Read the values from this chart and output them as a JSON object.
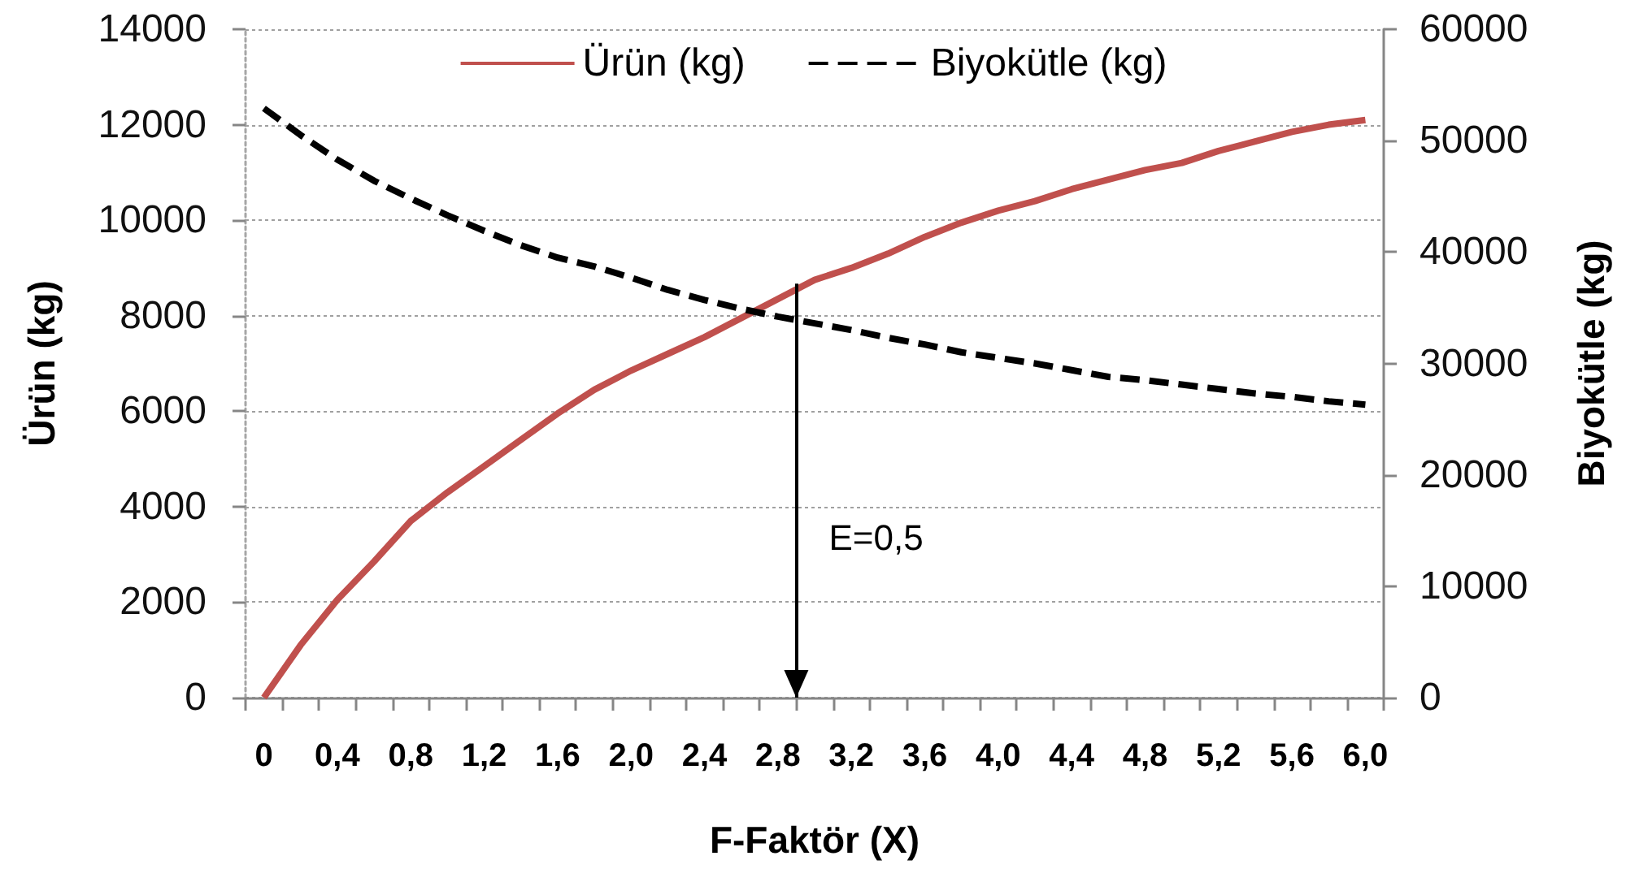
{
  "chart_data": {
    "type": "line",
    "xlabel": "F-Faktör (X)",
    "ylabel": "Ürün (kg)",
    "y2label": "Biyokütle (kg)",
    "x": [
      0,
      0.2,
      0.4,
      0.6,
      0.8,
      1.0,
      1.2,
      1.4,
      1.6,
      1.8,
      2.0,
      2.2,
      2.4,
      2.6,
      2.8,
      3.0,
      3.2,
      3.4,
      3.6,
      3.8,
      4.0,
      4.2,
      4.4,
      4.6,
      4.8,
      5.0,
      5.2,
      5.4,
      5.6,
      5.8,
      6.0
    ],
    "series": [
      {
        "name": "Ürün (kg)",
        "color": "#c0504d",
        "line_style": "solid",
        "values": [
          0,
          1100,
          2050,
          2850,
          3700,
          4300,
          4850,
          5400,
          5950,
          6450,
          6850,
          7200,
          7550,
          7950,
          8350,
          8750,
          9000,
          9300,
          9650,
          9950,
          10200,
          10400,
          10650,
          10850,
          11050,
          11200,
          11450,
          11650,
          11850,
          12000,
          12100
        ]
      },
      {
        "name": "Biyokütle (kg)",
        "color": "#000000",
        "line_style": "dashed",
        "axis": "y2",
        "values": [
          52900,
          50500,
          48300,
          46400,
          44800,
          43300,
          41900,
          40600,
          39500,
          38700,
          37700,
          36600,
          35700,
          34900,
          34200,
          33600,
          33000,
          32300,
          31700,
          31000,
          30500,
          30000,
          29400,
          28800,
          28500,
          28100,
          27700,
          27300,
          27000,
          26600,
          26300
        ]
      }
    ],
    "xlim": [
      -0.1,
      6.1
    ],
    "xticks": [
      {
        "value": -0.1,
        "label": null
      },
      0,
      {
        "value": 0.1,
        "label": null
      },
      {
        "value": 0.3,
        "label": null
      },
      {
        "value": 0.4,
        "label": "0,4"
      },
      {
        "value": 0.5,
        "label": null
      },
      {
        "value": 0.7,
        "label": null
      },
      {
        "value": 0.8,
        "label": "0,8"
      },
      {
        "value": 0.9,
        "label": null
      },
      {
        "value": 1.1,
        "label": null
      },
      {
        "value": 1.2,
        "label": "1,2"
      },
      {
        "value": 1.3,
        "label": null
      },
      {
        "value": 1.5,
        "label": null
      },
      {
        "value": 1.6,
        "label": "1,6"
      },
      {
        "value": 1.7,
        "label": null
      },
      {
        "value": 1.9,
        "label": null
      },
      {
        "value": 2.0,
        "label": "2,0"
      },
      {
        "value": 2.1,
        "label": null
      },
      {
        "value": 2.3,
        "label": null
      },
      {
        "value": 2.4,
        "label": "2,4"
      },
      {
        "value": 2.5,
        "label": null
      },
      {
        "value": 2.7,
        "label": null
      },
      {
        "value": 2.8,
        "label": "2,8"
      },
      {
        "value": 2.9,
        "label": null
      },
      {
        "value": 3.1,
        "label": null
      },
      {
        "value": 3.2,
        "label": "3,2"
      },
      {
        "value": 3.3,
        "label": null
      },
      {
        "value": 3.5,
        "label": null
      },
      {
        "value": 3.6,
        "label": "3,6"
      },
      {
        "value": 3.7,
        "label": null
      },
      {
        "value": 3.9,
        "label": null
      },
      {
        "value": 4.0,
        "label": "4,0"
      },
      {
        "value": 4.1,
        "label": null
      },
      {
        "value": 4.3,
        "label": null
      },
      {
        "value": 4.4,
        "label": "4,4"
      },
      {
        "value": 4.5,
        "label": null
      },
      {
        "value": 4.7,
        "label": null
      },
      {
        "value": 4.8,
        "label": "4,8"
      },
      {
        "value": 4.9,
        "label": null
      },
      {
        "value": 5.1,
        "label": null
      },
      {
        "value": 5.2,
        "label": "5,2"
      },
      {
        "value": 5.3,
        "label": null
      },
      {
        "value": 5.5,
        "label": null
      },
      {
        "value": 5.6,
        "label": "5,6"
      },
      {
        "value": 5.7,
        "label": null
      },
      {
        "value": 5.9,
        "label": null
      },
      {
        "value": 6.0,
        "label": "6,0"
      },
      {
        "value": 6.1,
        "label": null
      }
    ],
    "ylim": [
      0,
      14000
    ],
    "yticks": [
      0,
      2000,
      4000,
      6000,
      8000,
      10000,
      12000,
      14000
    ],
    "y2lim": [
      0,
      60000
    ],
    "y2ticks": [
      0,
      10000,
      20000,
      30000,
      40000,
      50000,
      60000
    ],
    "grid": "y",
    "legend": "top",
    "marker": "none",
    "ref_lines": [
      {
        "axis": "x",
        "value": 2.9,
        "color": "#000000"
      }
    ],
    "annotations": [
      {
        "text": "E=0,5",
        "x": 2.9,
        "y": 3350
      }
    ]
  }
}
